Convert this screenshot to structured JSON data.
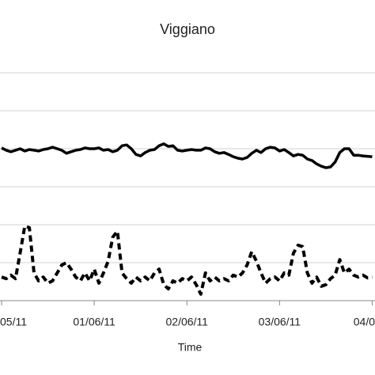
{
  "chart_data": {
    "type": "line",
    "title": "Viggiano",
    "x_label": "Time",
    "x": [
      0,
      0.05,
      0.1,
      0.15,
      0.2,
      0.25,
      0.3,
      0.35,
      0.4,
      0.45,
      0.5,
      0.55,
      0.6,
      0.65,
      0.7,
      0.75,
      0.8,
      0.85,
      0.9,
      0.95,
      1,
      1.05,
      1.1,
      1.15,
      1.2,
      1.25,
      1.3,
      1.35,
      1.4,
      1.45,
      1.5,
      1.55,
      1.6,
      1.65,
      1.7,
      1.75,
      1.8,
      1.85,
      1.9,
      1.95,
      2,
      2.05,
      2.1,
      2.15,
      2.2,
      2.25,
      2.3,
      2.35,
      2.4,
      2.45,
      2.5,
      2.55,
      2.6,
      2.65,
      2.7,
      2.75,
      2.8,
      2.85,
      2.9,
      2.95,
      3,
      3.05,
      3.1,
      3.15,
      3.2,
      3.25,
      3.3,
      3.35,
      3.4,
      3.45,
      3.5,
      3.55,
      3.6,
      3.65,
      3.7,
      3.75,
      3.8,
      3.85,
      3.9,
      3.95,
      4
    ],
    "series": [
      {
        "color": "#000000",
        "style": "solid",
        "values": [
          4.02,
          3.96,
          3.92,
          3.96,
          4.0,
          3.94,
          3.98,
          3.96,
          3.94,
          3.98,
          4.0,
          4.04,
          4.0,
          3.96,
          3.88,
          3.92,
          3.96,
          3.98,
          4.02,
          4.0,
          4.0,
          4.02,
          3.96,
          3.98,
          3.92,
          3.96,
          4.08,
          4.1,
          4.0,
          3.85,
          3.81,
          3.9,
          3.96,
          3.98,
          4.08,
          4.13,
          4.06,
          4.08,
          3.96,
          3.94,
          3.96,
          3.98,
          3.96,
          3.96,
          4.02,
          4.0,
          3.92,
          3.88,
          3.9,
          3.85,
          3.79,
          3.75,
          3.73,
          3.77,
          3.88,
          3.96,
          3.9,
          4.0,
          4.04,
          4.02,
          3.94,
          3.98,
          3.9,
          3.81,
          3.85,
          3.83,
          3.73,
          3.69,
          3.6,
          3.54,
          3.5,
          3.52,
          3.65,
          3.9,
          4.0,
          4.0,
          3.83,
          3.83,
          3.81,
          3.8,
          3.79
        ]
      },
      {
        "color": "#000000",
        "style": "dashed",
        "values": [
          0.62,
          0.58,
          0.67,
          0.58,
          1.25,
          1.96,
          1.92,
          0.73,
          0.52,
          0.62,
          0.46,
          0.52,
          0.73,
          0.94,
          1.0,
          0.83,
          0.62,
          0.52,
          0.73,
          0.52,
          0.83,
          0.46,
          0.73,
          1.04,
          1.67,
          1.83,
          0.73,
          0.58,
          0.46,
          0.62,
          0.52,
          0.62,
          0.52,
          0.73,
          0.83,
          0.42,
          0.31,
          0.52,
          0.46,
          0.58,
          0.52,
          0.62,
          0.42,
          0.17,
          0.73,
          0.52,
          0.62,
          0.52,
          0.58,
          0.52,
          0.67,
          0.62,
          0.73,
          0.94,
          1.29,
          1.04,
          0.73,
          0.46,
          0.58,
          0.62,
          0.52,
          0.73,
          0.67,
          1.25,
          1.46,
          1.42,
          0.73,
          0.46,
          0.62,
          0.38,
          0.42,
          0.58,
          0.67,
          1.08,
          0.73,
          0.83,
          0.67,
          0.62,
          0.67,
          0.6,
          0.62
        ]
      }
    ],
    "xlim": [
      0,
      4.03
    ],
    "xticks": [
      {
        "value": 0,
        "label": "05/11"
      },
      {
        "value": 1,
        "label": "01/06/11"
      },
      {
        "value": 2,
        "label": "02/06/11"
      },
      {
        "value": 3,
        "label": "03/06/11"
      },
      {
        "value": 4,
        "label": "04/0"
      }
    ],
    "ylim": [
      0,
      6
    ],
    "yticks": [
      0,
      1,
      2,
      3,
      4,
      5,
      6
    ],
    "grid": true
  }
}
